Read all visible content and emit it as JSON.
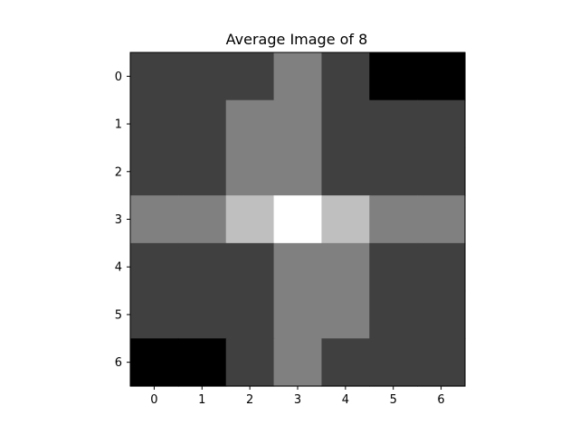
{
  "chart_data": {
    "type": "heatmap",
    "title": "Average Image of 8",
    "xlabel": "",
    "ylabel": "",
    "colormap": "gray",
    "value_range": [
      0,
      1
    ],
    "x_ticks": [
      "0",
      "1",
      "2",
      "3",
      "4",
      "5",
      "6"
    ],
    "y_ticks": [
      "0",
      "1",
      "2",
      "3",
      "4",
      "5",
      "6"
    ],
    "values": [
      [
        0.25,
        0.25,
        0.25,
        0.5,
        0.25,
        0.0,
        0.0
      ],
      [
        0.25,
        0.25,
        0.5,
        0.5,
        0.25,
        0.25,
        0.25
      ],
      [
        0.25,
        0.25,
        0.5,
        0.5,
        0.25,
        0.25,
        0.25
      ],
      [
        0.5,
        0.5,
        0.75,
        1.0,
        0.75,
        0.5,
        0.5
      ],
      [
        0.25,
        0.25,
        0.25,
        0.5,
        0.5,
        0.25,
        0.25
      ],
      [
        0.25,
        0.25,
        0.25,
        0.5,
        0.5,
        0.25,
        0.25
      ],
      [
        0.0,
        0.0,
        0.25,
        0.5,
        0.25,
        0.25,
        0.25
      ]
    ]
  }
}
